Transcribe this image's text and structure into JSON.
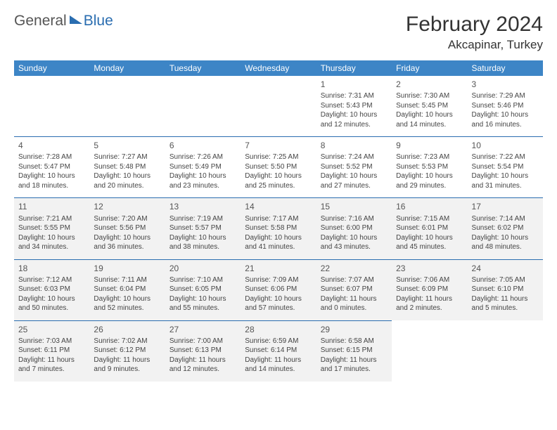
{
  "logo": {
    "part1": "General",
    "part2": "Blue"
  },
  "title": "February 2024",
  "location": "Akcapinar, Turkey",
  "colors": {
    "header_bg": "#3d85c6",
    "border": "#2a6db0",
    "shade": "#f2f2f2",
    "text": "#333333"
  },
  "day_names": [
    "Sunday",
    "Monday",
    "Tuesday",
    "Wednesday",
    "Thursday",
    "Friday",
    "Saturday"
  ],
  "weeks": [
    [
      null,
      null,
      null,
      null,
      {
        "n": "1",
        "sr": "Sunrise: 7:31 AM",
        "ss": "Sunset: 5:43 PM",
        "dl1": "Daylight: 10 hours",
        "dl2": "and 12 minutes."
      },
      {
        "n": "2",
        "sr": "Sunrise: 7:30 AM",
        "ss": "Sunset: 5:45 PM",
        "dl1": "Daylight: 10 hours",
        "dl2": "and 14 minutes."
      },
      {
        "n": "3",
        "sr": "Sunrise: 7:29 AM",
        "ss": "Sunset: 5:46 PM",
        "dl1": "Daylight: 10 hours",
        "dl2": "and 16 minutes."
      }
    ],
    [
      {
        "n": "4",
        "sr": "Sunrise: 7:28 AM",
        "ss": "Sunset: 5:47 PM",
        "dl1": "Daylight: 10 hours",
        "dl2": "and 18 minutes."
      },
      {
        "n": "5",
        "sr": "Sunrise: 7:27 AM",
        "ss": "Sunset: 5:48 PM",
        "dl1": "Daylight: 10 hours",
        "dl2": "and 20 minutes."
      },
      {
        "n": "6",
        "sr": "Sunrise: 7:26 AM",
        "ss": "Sunset: 5:49 PM",
        "dl1": "Daylight: 10 hours",
        "dl2": "and 23 minutes."
      },
      {
        "n": "7",
        "sr": "Sunrise: 7:25 AM",
        "ss": "Sunset: 5:50 PM",
        "dl1": "Daylight: 10 hours",
        "dl2": "and 25 minutes."
      },
      {
        "n": "8",
        "sr": "Sunrise: 7:24 AM",
        "ss": "Sunset: 5:52 PM",
        "dl1": "Daylight: 10 hours",
        "dl2": "and 27 minutes."
      },
      {
        "n": "9",
        "sr": "Sunrise: 7:23 AM",
        "ss": "Sunset: 5:53 PM",
        "dl1": "Daylight: 10 hours",
        "dl2": "and 29 minutes."
      },
      {
        "n": "10",
        "sr": "Sunrise: 7:22 AM",
        "ss": "Sunset: 5:54 PM",
        "dl1": "Daylight: 10 hours",
        "dl2": "and 31 minutes."
      }
    ],
    [
      {
        "n": "11",
        "sr": "Sunrise: 7:21 AM",
        "ss": "Sunset: 5:55 PM",
        "dl1": "Daylight: 10 hours",
        "dl2": "and 34 minutes.",
        "shade": true
      },
      {
        "n": "12",
        "sr": "Sunrise: 7:20 AM",
        "ss": "Sunset: 5:56 PM",
        "dl1": "Daylight: 10 hours",
        "dl2": "and 36 minutes.",
        "shade": true
      },
      {
        "n": "13",
        "sr": "Sunrise: 7:19 AM",
        "ss": "Sunset: 5:57 PM",
        "dl1": "Daylight: 10 hours",
        "dl2": "and 38 minutes.",
        "shade": true
      },
      {
        "n": "14",
        "sr": "Sunrise: 7:17 AM",
        "ss": "Sunset: 5:58 PM",
        "dl1": "Daylight: 10 hours",
        "dl2": "and 41 minutes.",
        "shade": true
      },
      {
        "n": "15",
        "sr": "Sunrise: 7:16 AM",
        "ss": "Sunset: 6:00 PM",
        "dl1": "Daylight: 10 hours",
        "dl2": "and 43 minutes.",
        "shade": true
      },
      {
        "n": "16",
        "sr": "Sunrise: 7:15 AM",
        "ss": "Sunset: 6:01 PM",
        "dl1": "Daylight: 10 hours",
        "dl2": "and 45 minutes.",
        "shade": true
      },
      {
        "n": "17",
        "sr": "Sunrise: 7:14 AM",
        "ss": "Sunset: 6:02 PM",
        "dl1": "Daylight: 10 hours",
        "dl2": "and 48 minutes.",
        "shade": true
      }
    ],
    [
      {
        "n": "18",
        "sr": "Sunrise: 7:12 AM",
        "ss": "Sunset: 6:03 PM",
        "dl1": "Daylight: 10 hours",
        "dl2": "and 50 minutes.",
        "shade": true
      },
      {
        "n": "19",
        "sr": "Sunrise: 7:11 AM",
        "ss": "Sunset: 6:04 PM",
        "dl1": "Daylight: 10 hours",
        "dl2": "and 52 minutes.",
        "shade": true
      },
      {
        "n": "20",
        "sr": "Sunrise: 7:10 AM",
        "ss": "Sunset: 6:05 PM",
        "dl1": "Daylight: 10 hours",
        "dl2": "and 55 minutes.",
        "shade": true
      },
      {
        "n": "21",
        "sr": "Sunrise: 7:09 AM",
        "ss": "Sunset: 6:06 PM",
        "dl1": "Daylight: 10 hours",
        "dl2": "and 57 minutes.",
        "shade": true
      },
      {
        "n": "22",
        "sr": "Sunrise: 7:07 AM",
        "ss": "Sunset: 6:07 PM",
        "dl1": "Daylight: 11 hours",
        "dl2": "and 0 minutes.",
        "shade": true
      },
      {
        "n": "23",
        "sr": "Sunrise: 7:06 AM",
        "ss": "Sunset: 6:09 PM",
        "dl1": "Daylight: 11 hours",
        "dl2": "and 2 minutes.",
        "shade": true
      },
      {
        "n": "24",
        "sr": "Sunrise: 7:05 AM",
        "ss": "Sunset: 6:10 PM",
        "dl1": "Daylight: 11 hours",
        "dl2": "and 5 minutes.",
        "shade": true
      }
    ],
    [
      {
        "n": "25",
        "sr": "Sunrise: 7:03 AM",
        "ss": "Sunset: 6:11 PM",
        "dl1": "Daylight: 11 hours",
        "dl2": "and 7 minutes.",
        "shade": true
      },
      {
        "n": "26",
        "sr": "Sunrise: 7:02 AM",
        "ss": "Sunset: 6:12 PM",
        "dl1": "Daylight: 11 hours",
        "dl2": "and 9 minutes.",
        "shade": true
      },
      {
        "n": "27",
        "sr": "Sunrise: 7:00 AM",
        "ss": "Sunset: 6:13 PM",
        "dl1": "Daylight: 11 hours",
        "dl2": "and 12 minutes.",
        "shade": true
      },
      {
        "n": "28",
        "sr": "Sunrise: 6:59 AM",
        "ss": "Sunset: 6:14 PM",
        "dl1": "Daylight: 11 hours",
        "dl2": "and 14 minutes.",
        "shade": true
      },
      {
        "n": "29",
        "sr": "Sunrise: 6:58 AM",
        "ss": "Sunset: 6:15 PM",
        "dl1": "Daylight: 11 hours",
        "dl2": "and 17 minutes.",
        "shade": true
      },
      null,
      null
    ]
  ]
}
